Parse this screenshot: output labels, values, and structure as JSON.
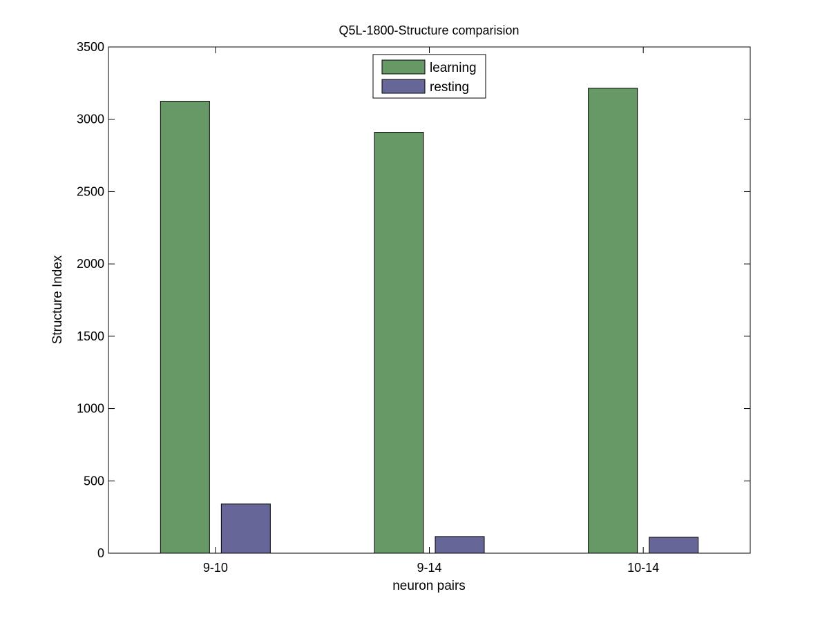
{
  "chart_data": {
    "type": "bar",
    "title": "Q5L-1800-Structure comparision",
    "xlabel": "neuron pairs",
    "ylabel": "Structure Index",
    "categories": [
      "9-10",
      "9-14",
      "10-14"
    ],
    "series": [
      {
        "name": "learning",
        "values": [
          3125,
          2910,
          3215
        ],
        "color": "#669966"
      },
      {
        "name": "resting",
        "values": [
          340,
          115,
          110
        ],
        "color": "#666699"
      }
    ],
    "ylim": [
      0,
      3500
    ],
    "yticks": [
      0,
      500,
      1000,
      1500,
      2000,
      2500,
      3000,
      3500
    ],
    "grid": false,
    "legend_position": "top-center"
  }
}
